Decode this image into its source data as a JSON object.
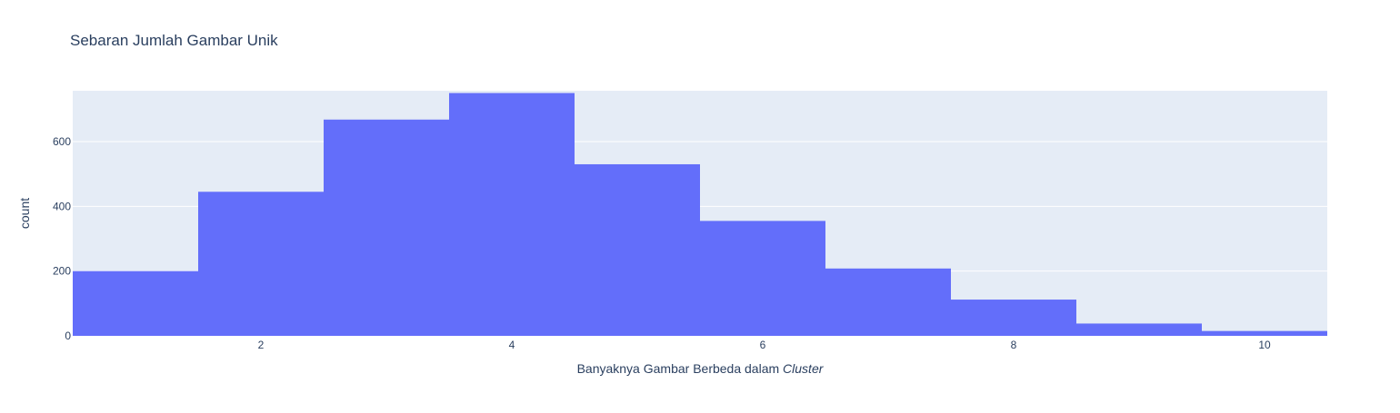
{
  "chart_data": {
    "type": "bar",
    "title": "Sebaran Jumlah Gambar Unik",
    "xlabel_prefix": "Banyaknya Gambar Berbeda dalam ",
    "xlabel_emphasis": "Cluster",
    "ylabel": "count",
    "x": [
      1,
      2,
      3,
      4,
      5,
      6,
      7,
      8,
      9,
      10
    ],
    "values": [
      200,
      445,
      668,
      750,
      530,
      355,
      208,
      112,
      38,
      15
    ],
    "bin_width": 1,
    "xlim": [
      0.5,
      10.5
    ],
    "ylim": [
      0,
      757
    ],
    "x_ticks": [
      2,
      4,
      6,
      8,
      10
    ],
    "y_ticks": [
      0,
      200,
      400,
      600
    ],
    "bar_color": "#636efa",
    "plot_bg": "#e5ecf6",
    "grid": true
  }
}
